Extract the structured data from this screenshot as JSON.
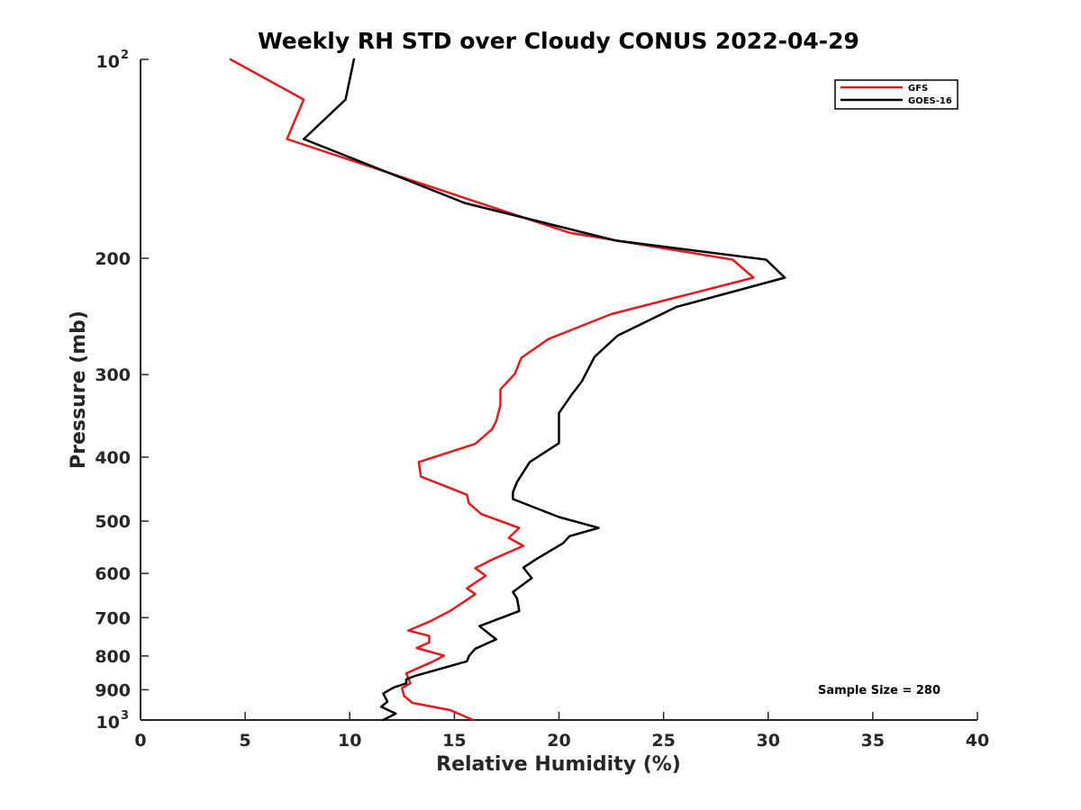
{
  "chart_data": {
    "type": "line",
    "title": "Weekly RH STD over Cloudy CONUS 2022-04-29",
    "xlabel": "Relative Humidity (%)",
    "ylabel": "Pressure (mb)",
    "xlim": [
      0,
      40
    ],
    "ylim": [
      100,
      1000
    ],
    "yscale": "log",
    "y_reversed": true,
    "grid": false,
    "legend_position": "top-right",
    "x_ticks": [
      "0",
      "5",
      "10",
      "15",
      "20",
      "25",
      "30",
      "35",
      "40"
    ],
    "x_tick_values": [
      0,
      5,
      10,
      15,
      20,
      25,
      30,
      35,
      40
    ],
    "y_ticks": [
      {
        "value": 100,
        "base": "10",
        "exp": "2"
      },
      {
        "value": 200,
        "label": "200"
      },
      {
        "value": 300,
        "label": "300"
      },
      {
        "value": 400,
        "label": "400"
      },
      {
        "value": 500,
        "label": "500"
      },
      {
        "value": 600,
        "label": "600"
      },
      {
        "value": 700,
        "label": "700"
      },
      {
        "value": 800,
        "label": "800"
      },
      {
        "value": 900,
        "label": "900"
      },
      {
        "value": 1000,
        "base": "10",
        "exp": "3"
      }
    ],
    "annotation": "Sample Size = 280",
    "series": [
      {
        "name": "GFS",
        "color": "#e31a1c",
        "points": [
          [
            4.3,
            100
          ],
          [
            7.8,
            115
          ],
          [
            7.0,
            132
          ],
          [
            20.5,
            183
          ],
          [
            28.3,
            201
          ],
          [
            29.3,
            214
          ],
          [
            22.5,
            243
          ],
          [
            19.5,
            265
          ],
          [
            18.2,
            283
          ],
          [
            17.9,
            299
          ],
          [
            17.2,
            316
          ],
          [
            17.2,
            334
          ],
          [
            17.0,
            353
          ],
          [
            16.8,
            363
          ],
          [
            16.0,
            382
          ],
          [
            13.3,
            407
          ],
          [
            13.4,
            428
          ],
          [
            15.6,
            456
          ],
          [
            15.7,
            470
          ],
          [
            16.3,
            488
          ],
          [
            18.1,
            512
          ],
          [
            17.6,
            530
          ],
          [
            18.3,
            545
          ],
          [
            16.9,
            570
          ],
          [
            16.0,
            589
          ],
          [
            16.5,
            605
          ],
          [
            15.6,
            632
          ],
          [
            16.0,
            645
          ],
          [
            14.8,
            684
          ],
          [
            13.8,
            710
          ],
          [
            12.8,
            732
          ],
          [
            13.8,
            746
          ],
          [
            13.8,
            763
          ],
          [
            13.2,
            778
          ],
          [
            14.5,
            799
          ],
          [
            14.0,
            815
          ],
          [
            12.7,
            850
          ],
          [
            12.9,
            880
          ],
          [
            12.5,
            895
          ],
          [
            12.6,
            920
          ],
          [
            13.0,
            942
          ],
          [
            14.8,
            966
          ],
          [
            15.9,
            1000
          ]
        ]
      },
      {
        "name": "GOES-16",
        "color": "#000000",
        "points": [
          [
            10.2,
            100
          ],
          [
            9.8,
            115
          ],
          [
            7.8,
            132
          ],
          [
            15.5,
            165
          ],
          [
            22.7,
            188
          ],
          [
            29.9,
            201
          ],
          [
            30.8,
            214
          ],
          [
            25.6,
            237
          ],
          [
            22.8,
            262
          ],
          [
            21.7,
            282
          ],
          [
            21.1,
            307
          ],
          [
            20.6,
            322
          ],
          [
            20.0,
            343
          ],
          [
            20.0,
            351
          ],
          [
            20.0,
            381
          ],
          [
            18.6,
            407
          ],
          [
            18.0,
            436
          ],
          [
            17.8,
            452
          ],
          [
            17.8,
            463
          ],
          [
            20.0,
            493
          ],
          [
            21.9,
            512
          ],
          [
            20.5,
            527
          ],
          [
            20.2,
            540
          ],
          [
            18.9,
            571
          ],
          [
            18.3,
            588
          ],
          [
            18.7,
            610
          ],
          [
            17.8,
            640
          ],
          [
            18.0,
            655
          ],
          [
            18.1,
            684
          ],
          [
            16.2,
            721
          ],
          [
            17.0,
            755
          ],
          [
            16.0,
            780
          ],
          [
            15.7,
            800
          ],
          [
            15.6,
            815
          ],
          [
            13.1,
            858
          ],
          [
            12.7,
            868
          ],
          [
            12.7,
            880
          ],
          [
            12.1,
            893
          ],
          [
            11.6,
            912
          ],
          [
            11.8,
            938
          ],
          [
            11.5,
            955
          ],
          [
            12.2,
            978
          ],
          [
            11.6,
            1000
          ]
        ]
      }
    ]
  }
}
